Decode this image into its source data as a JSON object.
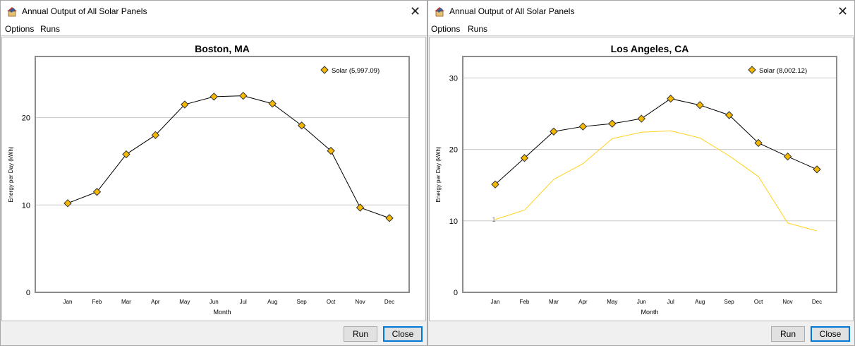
{
  "windows": [
    {
      "title": "Annual Output of All Solar Panels",
      "menu": [
        "Options",
        "Runs"
      ],
      "buttons": {
        "run": "Run",
        "close": "Close"
      },
      "close_icon": "close-icon",
      "app_icon": "solar-house-icon"
    },
    {
      "title": "Annual Output of All Solar Panels",
      "menu": [
        "Options",
        "Runs"
      ],
      "buttons": {
        "run": "Run",
        "close": "Close"
      },
      "close_icon": "close-icon",
      "app_icon": "solar-house-icon"
    }
  ],
  "colors": {
    "marker": "#f5b800",
    "marker_stroke": "#333333",
    "line": "#000000",
    "compare_line": "#ffd21f",
    "grid": "#c8c8c8",
    "frame": "#8c8c8c"
  },
  "chart_data": [
    {
      "type": "line",
      "title": "Boston, MA",
      "xlabel": "Month",
      "ylabel": "Energy per Day (kWh)",
      "categories": [
        "Jan",
        "Feb",
        "Mar",
        "Apr",
        "May",
        "Jun",
        "Jul",
        "Aug",
        "Sep",
        "Oct",
        "Nov",
        "Dec"
      ],
      "ylim": [
        0,
        27
      ],
      "yticks": [
        0,
        10,
        20
      ],
      "grid": true,
      "legend_position": "top-right",
      "series": [
        {
          "name": "Solar (5,997.09)",
          "values": [
            10.2,
            11.5,
            15.8,
            18.0,
            21.5,
            22.4,
            22.5,
            21.6,
            19.1,
            16.2,
            9.7,
            8.5
          ]
        }
      ]
    },
    {
      "type": "line",
      "title": "Los Angeles, CA",
      "xlabel": "Month",
      "ylabel": "Energy per Day (kWh)",
      "categories": [
        "Jan",
        "Feb",
        "Mar",
        "Apr",
        "May",
        "Jun",
        "Jul",
        "Aug",
        "Sep",
        "Oct",
        "Nov",
        "Dec"
      ],
      "ylim": [
        0,
        33
      ],
      "yticks": [
        0,
        10,
        20,
        30
      ],
      "grid": true,
      "legend_position": "top-right",
      "series": [
        {
          "name": "Solar (8,002.12)",
          "values": [
            15.1,
            18.8,
            22.5,
            23.2,
            23.6,
            24.3,
            27.1,
            26.2,
            24.8,
            20.9,
            19.0,
            17.2
          ]
        },
        {
          "label": "1",
          "values": [
            10.2,
            11.5,
            15.8,
            18.0,
            21.5,
            22.4,
            22.6,
            21.6,
            19.1,
            16.2,
            9.7,
            8.6
          ]
        }
      ]
    }
  ]
}
